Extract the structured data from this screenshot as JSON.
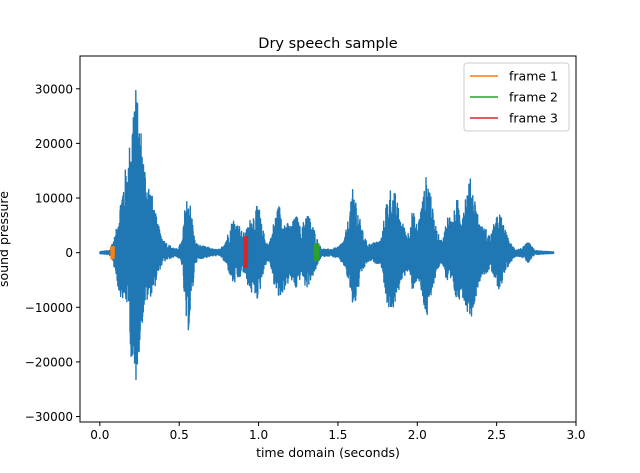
{
  "chart_data": {
    "type": "line",
    "title": "Dry speech sample",
    "xlabel": "time domain (seconds)",
    "ylabel": "sound pressure",
    "xlim": [
      -0.125,
      3.0
    ],
    "ylim": [
      -31000,
      36000
    ],
    "x_ticks": [
      0.0,
      0.5,
      1.0,
      1.5,
      2.0,
      2.5,
      3.0
    ],
    "x_tick_labels": [
      "0.0",
      "0.5",
      "1.0",
      "1.5",
      "2.0",
      "2.5",
      "3.0"
    ],
    "y_ticks": [
      -30000,
      -20000,
      -10000,
      0,
      10000,
      20000,
      30000
    ],
    "y_tick_labels": [
      "−30000",
      "−20000",
      "−10000",
      "0",
      "10000",
      "20000",
      "30000"
    ],
    "grid": false,
    "legend_position": "top-right",
    "waveform": {
      "color": "#1f77b4",
      "duration": 2.86,
      "envelope_t": [
        0.0,
        0.06,
        0.08,
        0.1,
        0.12,
        0.15,
        0.18,
        0.2,
        0.22,
        0.24,
        0.26,
        0.28,
        0.3,
        0.32,
        0.34,
        0.36,
        0.38,
        0.4,
        0.43,
        0.46,
        0.48,
        0.5,
        0.52,
        0.54,
        0.56,
        0.58,
        0.6,
        0.62,
        0.65,
        0.68,
        0.72,
        0.76,
        0.8,
        0.84,
        0.88,
        0.9,
        0.92,
        0.95,
        0.98,
        1.0,
        1.02,
        1.04,
        1.06,
        1.08,
        1.1,
        1.13,
        1.16,
        1.2,
        1.24,
        1.27,
        1.3,
        1.33,
        1.36,
        1.38,
        1.4,
        1.43,
        1.46,
        1.5,
        1.54,
        1.57,
        1.6,
        1.62,
        1.65,
        1.68,
        1.71,
        1.74,
        1.76,
        1.78,
        1.8,
        1.83,
        1.86,
        1.9,
        1.94,
        1.97,
        2.0,
        2.02,
        2.04,
        2.06,
        2.08,
        2.1,
        2.13,
        2.16,
        2.19,
        2.22,
        2.25,
        2.28,
        2.31,
        2.34,
        2.37,
        2.4,
        2.43,
        2.46,
        2.49,
        2.52,
        2.55,
        2.58,
        2.62,
        2.66,
        2.7,
        2.74,
        2.78,
        2.82,
        2.86
      ],
      "envelope_pos": [
        200,
        400,
        2000,
        3500,
        8000,
        14000,
        18000,
        24000,
        33000,
        27000,
        23000,
        17000,
        14000,
        12000,
        9000,
        6000,
        4000,
        2500,
        1500,
        1000,
        600,
        1200,
        2500,
        10000,
        11000,
        7000,
        2000,
        1500,
        1200,
        1000,
        600,
        600,
        3000,
        6500,
        5000,
        3500,
        4000,
        6500,
        8000,
        9200,
        5000,
        3000,
        1500,
        3000,
        6500,
        9000,
        6000,
        5000,
        7000,
        4000,
        8000,
        6000,
        3500,
        1500,
        800,
        600,
        700,
        1000,
        2500,
        7000,
        13000,
        9000,
        4500,
        2000,
        1500,
        2200,
        2000,
        3500,
        9000,
        12000,
        11000,
        6000,
        3500,
        8000,
        5000,
        8000,
        11000,
        15000,
        13000,
        7000,
        3500,
        2000,
        7500,
        6000,
        10000,
        8000,
        12000,
        14000,
        9000,
        5000,
        4500,
        3000,
        6000,
        7500,
        4500,
        2000,
        600,
        800,
        2000,
        400,
        300,
        200,
        150
      ],
      "envelope_neg": [
        200,
        400,
        1500,
        4000,
        7500,
        9000,
        10000,
        21000,
        27000,
        20000,
        15000,
        10000,
        9000,
        8000,
        7000,
        5000,
        3000,
        1800,
        1200,
        900,
        600,
        1200,
        2500,
        13000,
        14500,
        9000,
        2000,
        1400,
        1000,
        800,
        600,
        600,
        2500,
        6000,
        5000,
        3500,
        5000,
        7500,
        8000,
        9000,
        5000,
        2500,
        1500,
        3000,
        6500,
        9000,
        7000,
        5000,
        7000,
        4000,
        7000,
        5000,
        3500,
        1500,
        800,
        600,
        700,
        1000,
        2500,
        6000,
        11000,
        8000,
        4000,
        2000,
        1500,
        2000,
        2000,
        3000,
        8500,
        11000,
        10000,
        5000,
        3500,
        7000,
        5000,
        7000,
        10000,
        12500,
        11000,
        6000,
        3000,
        2000,
        6500,
        6000,
        9500,
        7500,
        10500,
        12000,
        8000,
        4500,
        4000,
        3000,
        5500,
        7000,
        4000,
        2000,
        600,
        800,
        2000,
        400,
        300,
        200,
        150
      ]
    },
    "series": [
      {
        "name": "frame 1",
        "color": "#ff7f0e",
        "x": [
          0.07,
          0.09
        ],
        "y": [
          -1200,
          1200
        ]
      },
      {
        "name": "frame 2",
        "color": "#2ca02c",
        "x": [
          1.35,
          1.38
        ],
        "y": [
          -1500,
          1700
        ]
      },
      {
        "name": "frame 3",
        "color": "#d62728",
        "x": [
          0.91,
          0.93
        ],
        "y": [
          -2800,
          3000
        ]
      }
    ]
  }
}
